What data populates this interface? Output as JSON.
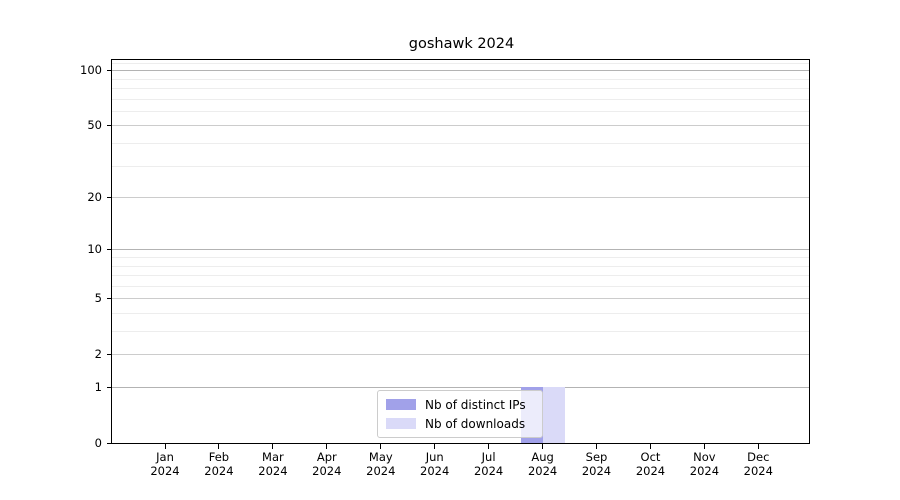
{
  "title": "goshawk 2024",
  "chart_data": {
    "type": "bar",
    "title": "goshawk 2024",
    "categories": [
      "Jan 2024",
      "Feb 2024",
      "Mar 2024",
      "Apr 2024",
      "May 2024",
      "Jun 2024",
      "Jul 2024",
      "Aug 2024",
      "Sep 2024",
      "Oct 2024",
      "Nov 2024",
      "Dec 2024"
    ],
    "series": [
      {
        "name": "Nb of distinct IPs",
        "color": "#a1a1e9",
        "values": [
          0,
          0,
          0,
          0,
          0,
          0,
          0,
          1,
          0,
          0,
          0,
          0
        ]
      },
      {
        "name": "Nb of downloads",
        "color": "#dadaf8",
        "values": [
          0,
          0,
          0,
          0,
          0,
          0,
          0,
          1,
          0,
          0,
          0,
          0
        ]
      }
    ],
    "xlabel": "",
    "ylabel": "",
    "yscale": "log1p",
    "yticks": [
      0,
      1,
      2,
      5,
      10,
      20,
      50,
      100
    ],
    "minor_yticks": [
      3,
      4,
      6,
      7,
      8,
      9,
      30,
      40,
      60,
      70,
      80,
      90,
      110
    ],
    "ylim": [
      0,
      115
    ],
    "grid": true,
    "legend_position": "lower-center",
    "bar_color_dark": "#a1a1e9",
    "bar_color_light": "#dadaf8",
    "grid_major_color": "#cccccc",
    "grid_minor_color": "#ededed"
  }
}
